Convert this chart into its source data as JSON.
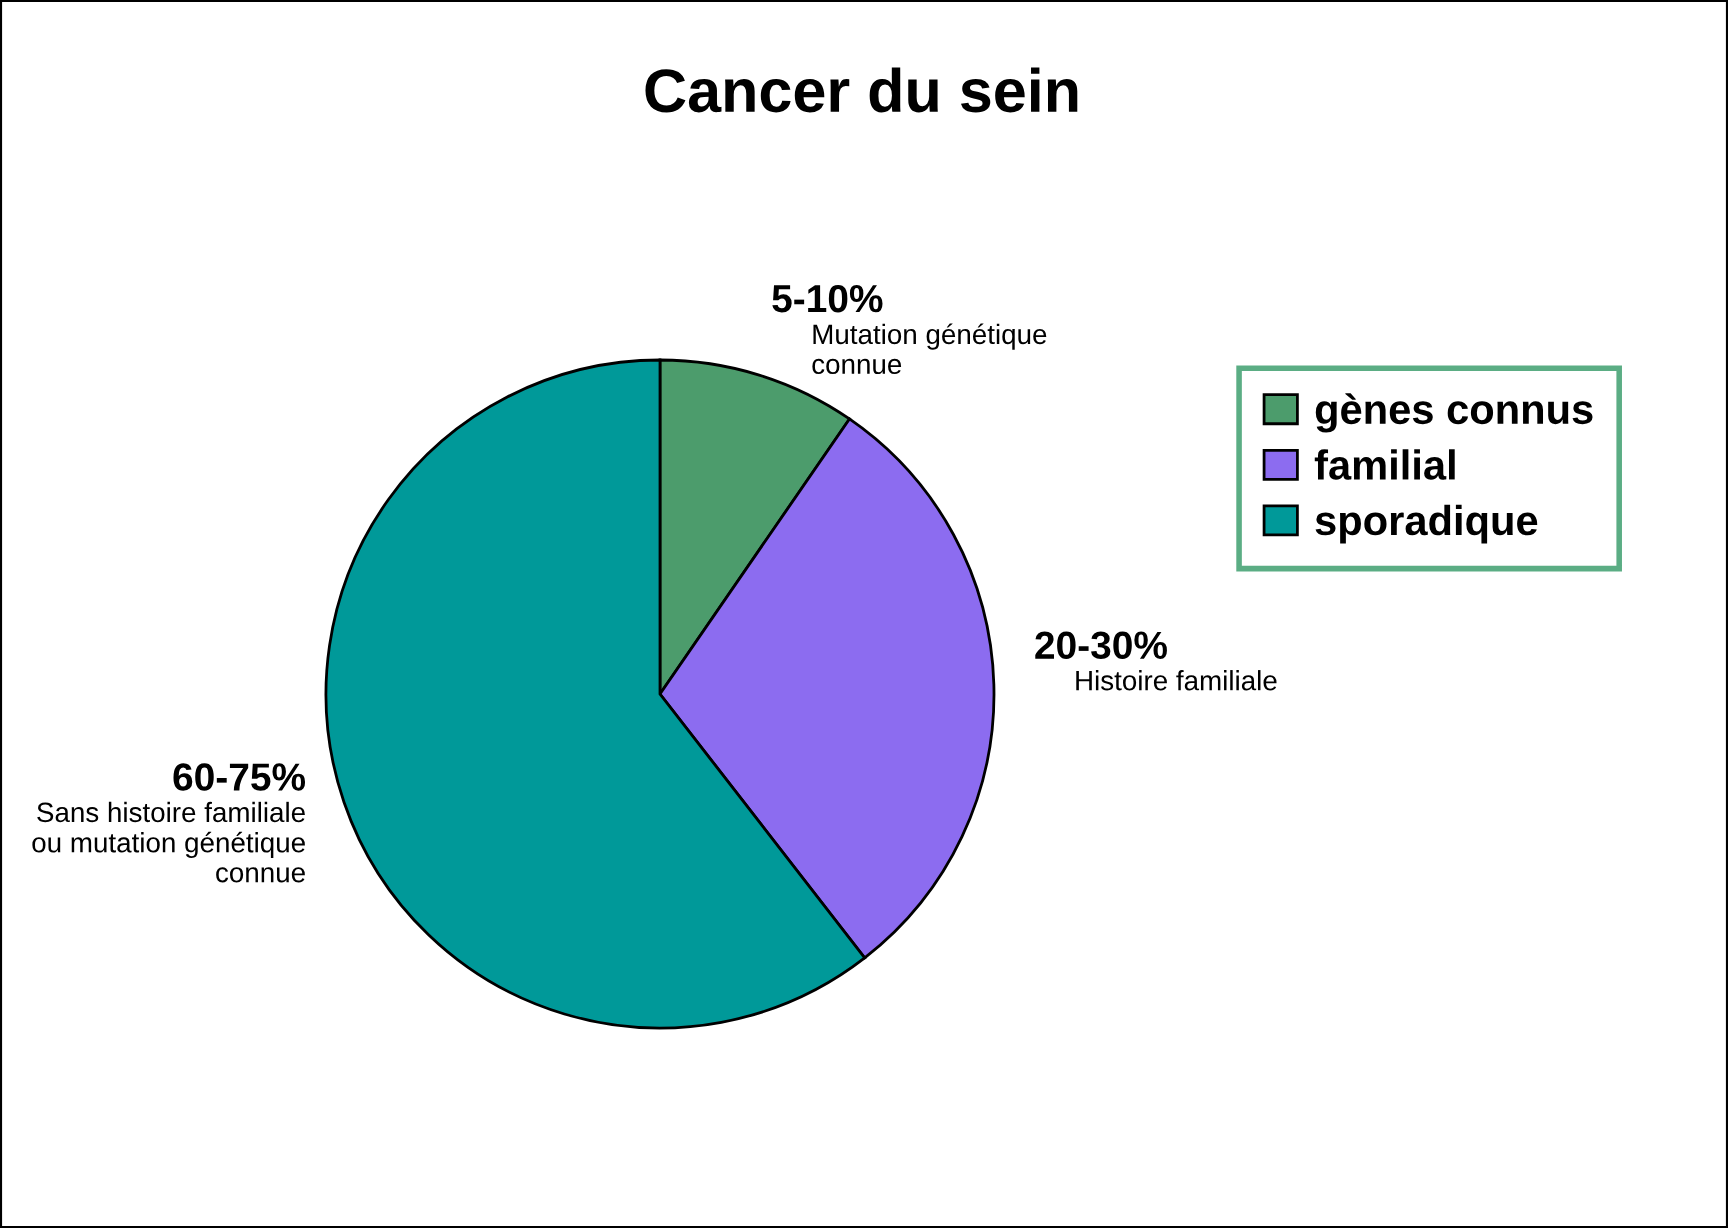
{
  "chart_data": {
    "type": "pie",
    "title": "Cancer du sein",
    "categories": [
      "gènes connus",
      "familial",
      "sporadique"
    ],
    "values": [
      9.6,
      29.9,
      60.5
    ],
    "colors": [
      "#4c9c6c",
      "#8c6cf0",
      "#009999"
    ],
    "annotations": [
      "5-10%",
      "Mutation génétique\nconnue",
      "20-30%",
      "Histoire familiale",
      "60-75%",
      "Sans histoire familiale\nou mutation génétique\nconnue"
    ],
    "legend": "right"
  }
}
